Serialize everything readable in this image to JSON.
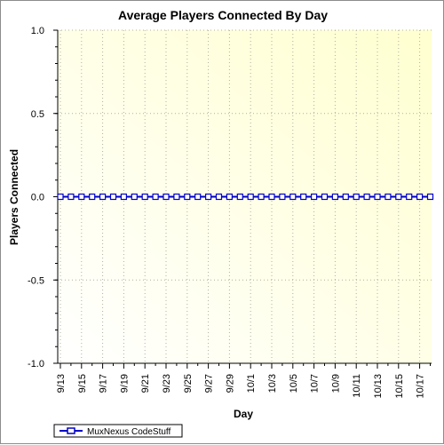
{
  "chart_data": {
    "type": "line",
    "title": "Average Players Connected By Day",
    "xlabel": "Day",
    "ylabel": "Players Connected",
    "ylim": [
      -1.0,
      1.0
    ],
    "yticks": [
      "1.0",
      "0.5",
      "0.0",
      "-0.5",
      "-1.0"
    ],
    "xtick_labels": [
      "9/13",
      "9/15",
      "9/17",
      "9/19",
      "9/21",
      "9/23",
      "9/25",
      "9/27",
      "9/29",
      "10/1",
      "10/3",
      "10/5",
      "10/7",
      "10/9",
      "10/11",
      "10/13",
      "10/15",
      "10/17"
    ],
    "x": [
      "9/13",
      "9/14",
      "9/15",
      "9/16",
      "9/17",
      "9/18",
      "9/19",
      "9/20",
      "9/21",
      "9/22",
      "9/23",
      "9/24",
      "9/25",
      "9/26",
      "9/27",
      "9/28",
      "9/29",
      "9/30",
      "10/1",
      "10/2",
      "10/3",
      "10/4",
      "10/5",
      "10/6",
      "10/7",
      "10/8",
      "10/9",
      "10/10",
      "10/11",
      "10/12",
      "10/13",
      "10/14",
      "10/15",
      "10/16",
      "10/17",
      "10/18"
    ],
    "series": [
      {
        "name": "MuxNexus CodeStuff",
        "color": "#0000c8",
        "values": [
          0,
          0,
          0,
          0,
          0,
          0,
          0,
          0,
          0,
          0,
          0,
          0,
          0,
          0,
          0,
          0,
          0,
          0,
          0,
          0,
          0,
          0,
          0,
          0,
          0,
          0,
          0,
          0,
          0,
          0,
          0,
          0,
          0,
          0,
          0,
          0
        ]
      }
    ],
    "grid": true,
    "legend_position": "bottom-left",
    "background_gradient": [
      "#ffffff",
      "#ffffd0"
    ]
  }
}
